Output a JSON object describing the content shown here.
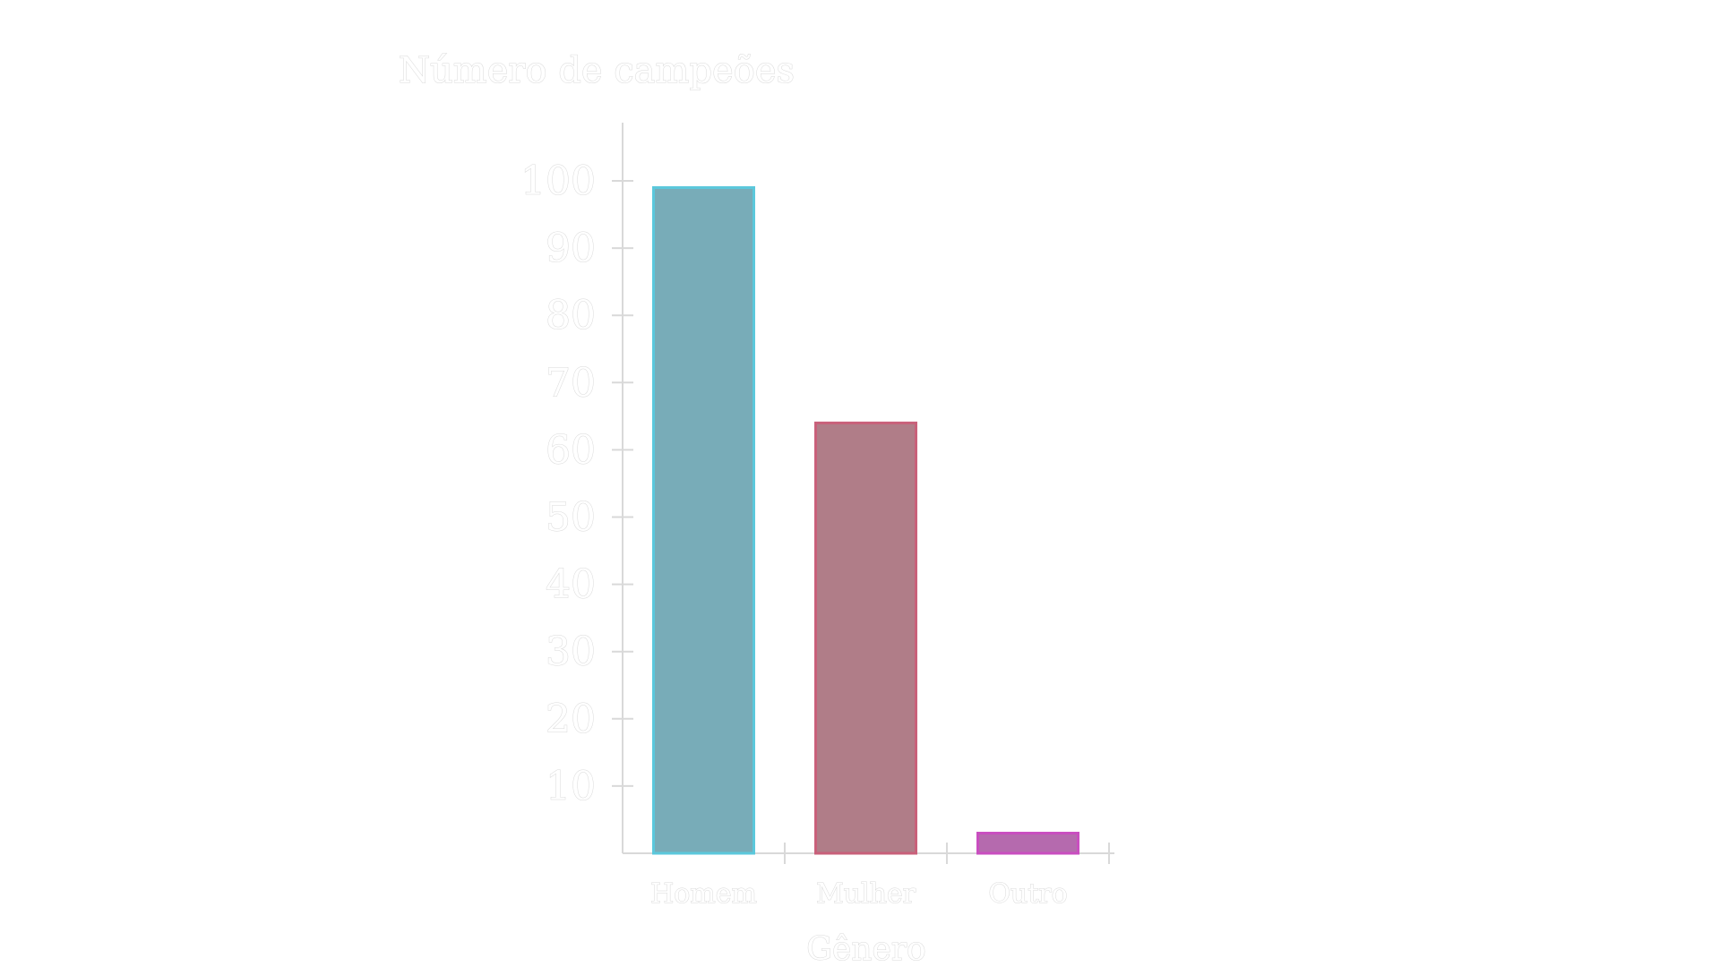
{
  "chart_data": {
    "type": "bar",
    "title": "",
    "ylabel": "Número de campeões",
    "xlabel": "Gênero",
    "categories": [
      "Homem",
      "Mulher",
      "Outro"
    ],
    "values": [
      99,
      64,
      3
    ],
    "ylim": [
      0,
      100
    ],
    "yticks": [
      "10",
      "20",
      "30",
      "40",
      "50",
      "60",
      "70",
      "80",
      "90",
      "100"
    ],
    "colors": {
      "fills": [
        "#78acb8",
        "#b07d88",
        "#b56aae"
      ],
      "strokes": [
        "#5bc8dc",
        "#c9607a",
        "#c94ec0"
      ]
    },
    "grid": false,
    "legend": "none"
  }
}
